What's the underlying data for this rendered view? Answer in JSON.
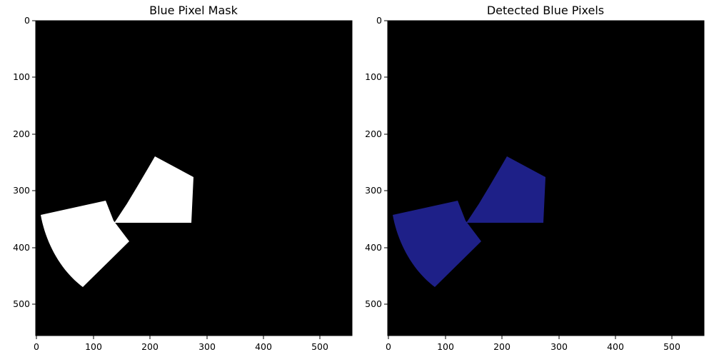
{
  "figure": {
    "panels": [
      {
        "title": "Blue Pixel Mask",
        "fill_color": "#ffffff",
        "background_color": "#000000",
        "x_ticks": [
          "0",
          "100",
          "200",
          "300",
          "400",
          "500"
        ],
        "y_ticks": [
          "0",
          "100",
          "200",
          "300",
          "400",
          "500"
        ]
      },
      {
        "title": "Detected Blue Pixels",
        "fill_color": "#1e2088",
        "background_color": "#000000",
        "x_ticks": [
          "0",
          "100",
          "200",
          "300",
          "400",
          "500"
        ],
        "y_ticks": [
          "0",
          "100",
          "200",
          "300",
          "400",
          "500"
        ]
      }
    ]
  }
}
